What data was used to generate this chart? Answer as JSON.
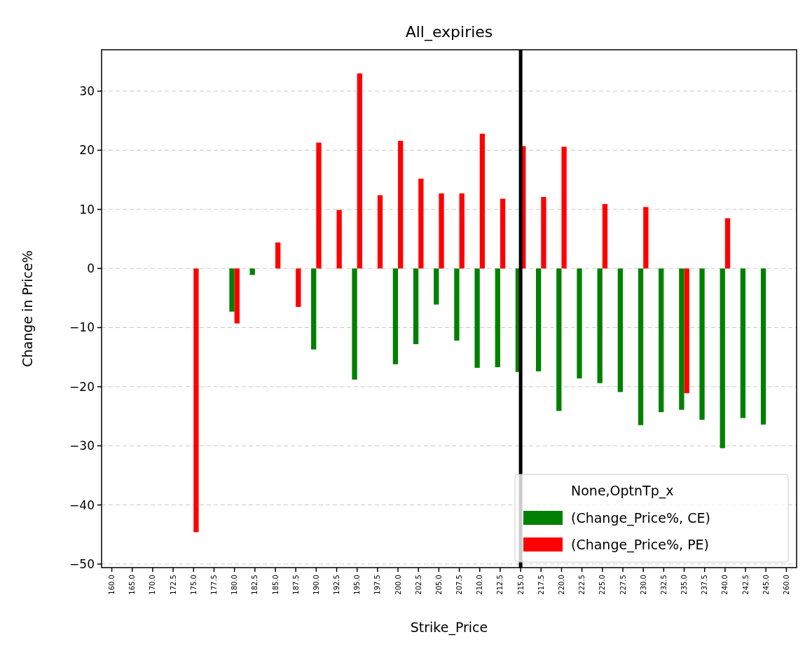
{
  "chart_data": {
    "type": "bar",
    "title": "All_expiries",
    "xlabel": "Strike_Price",
    "ylabel": "Change in Price%",
    "legend_title": "None,OptnTp_x",
    "categories": [
      "160.0",
      "165.0",
      "170.0",
      "172.5",
      "175.0",
      "177.5",
      "180.0",
      "182.5",
      "185.0",
      "187.5",
      "190.0",
      "192.5",
      "195.0",
      "197.5",
      "200.0",
      "202.5",
      "205.0",
      "207.5",
      "210.0",
      "212.5",
      "215.0",
      "217.5",
      "220.0",
      "222.5",
      "225.0",
      "227.5",
      "230.0",
      "232.5",
      "235.0",
      "237.5",
      "240.0",
      "242.5",
      "245.0",
      "260.0"
    ],
    "series": [
      {
        "name": "(Change_Price%, CE)",
        "color": "#008000",
        "values": [
          null,
          null,
          null,
          null,
          null,
          null,
          -7.3,
          -1.1,
          null,
          null,
          -13.7,
          null,
          -18.8,
          null,
          -16.2,
          -12.8,
          -6.1,
          -12.2,
          -16.8,
          -16.7,
          -17.5,
          -17.4,
          -24.1,
          -18.6,
          -19.4,
          -20.9,
          -26.5,
          -24.3,
          -23.9,
          -25.6,
          -30.4,
          -25.3,
          -26.4,
          null
        ]
      },
      {
        "name": "(Change_Price%, PE)",
        "color": "#ff0000",
        "values": [
          null,
          null,
          null,
          null,
          -44.6,
          null,
          -9.3,
          null,
          4.4,
          -6.5,
          21.3,
          9.9,
          33.0,
          12.4,
          21.6,
          15.2,
          12.7,
          12.7,
          22.8,
          11.8,
          20.7,
          12.1,
          20.6,
          null,
          10.9,
          null,
          10.4,
          null,
          -21.1,
          null,
          8.5,
          null,
          null,
          null
        ]
      }
    ],
    "ylim": [
      -50.6,
      37
    ],
    "yticks": [
      {
        "value": -50,
        "label": "−50"
      },
      {
        "value": -40,
        "label": "−40"
      },
      {
        "value": -30,
        "label": "−30"
      },
      {
        "value": -20,
        "label": "−20"
      },
      {
        "value": -10,
        "label": "−10"
      },
      0,
      10,
      20,
      30
    ],
    "grid": "y",
    "legend": "bottom right",
    "ref_lines": [
      {
        "axis": "x",
        "value": "215.0",
        "color": "#000000"
      }
    ]
  }
}
